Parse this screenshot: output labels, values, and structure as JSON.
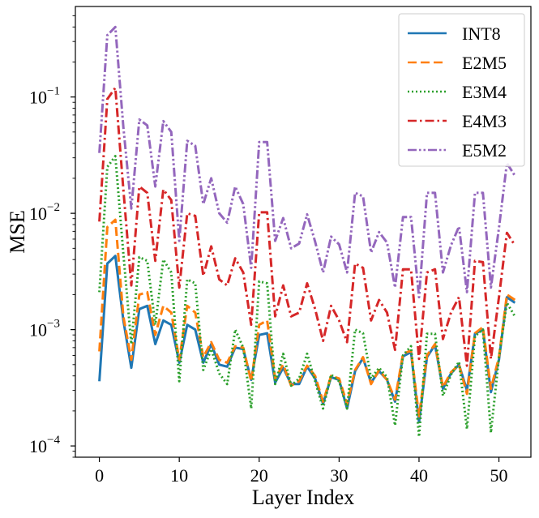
{
  "chart_data": {
    "type": "line",
    "title": "",
    "xlabel": "Layer Index",
    "ylabel": "MSE",
    "yscale": "log",
    "xlim": [
      -3,
      54
    ],
    "ylim": [
      8e-05,
      0.6
    ],
    "xticks": [
      0,
      10,
      20,
      30,
      40,
      50
    ],
    "yticks": [
      {
        "value": 0.0001,
        "base": "10",
        "exp": "−4"
      },
      {
        "value": 0.001,
        "base": "10",
        "exp": "−3"
      },
      {
        "value": 0.01,
        "base": "10",
        "exp": "−2"
      },
      {
        "value": 0.1,
        "base": "10",
        "exp": "−1"
      }
    ],
    "legend_position": "top-right",
    "x": [
      0,
      1,
      2,
      3,
      4,
      5,
      6,
      7,
      8,
      9,
      10,
      11,
      12,
      13,
      14,
      15,
      16,
      17,
      18,
      19,
      20,
      21,
      22,
      23,
      24,
      25,
      26,
      27,
      28,
      29,
      30,
      31,
      32,
      33,
      34,
      35,
      36,
      37,
      38,
      39,
      40,
      41,
      42,
      43,
      44,
      45,
      46,
      47,
      48,
      49,
      50,
      51,
      52
    ],
    "series": [
      {
        "name": "INT8",
        "color": "#1f77b4",
        "dash": "solid",
        "values": [
          0.00036,
          0.0037,
          0.0043,
          0.0012,
          0.00047,
          0.0015,
          0.0016,
          0.00075,
          0.0012,
          0.0011,
          0.00052,
          0.0011,
          0.001,
          0.00052,
          0.00075,
          0.0005,
          0.00048,
          0.0007,
          0.00068,
          0.00037,
          0.0009,
          0.00093,
          0.00035,
          0.00047,
          0.00034,
          0.00034,
          0.00048,
          0.00038,
          0.00023,
          0.00039,
          0.00037,
          0.00021,
          0.00044,
          0.00057,
          0.00035,
          0.00044,
          0.00037,
          0.00024,
          0.00059,
          0.00064,
          0.00016,
          0.00058,
          0.00074,
          0.00031,
          0.00042,
          0.0005,
          0.0003,
          0.00092,
          0.001,
          0.00029,
          0.00055,
          0.0019,
          0.0017
        ]
      },
      {
        "name": "E2M5",
        "color": "#ff7f0e",
        "dash": "dash",
        "values": [
          0.00065,
          0.0076,
          0.0088,
          0.0013,
          0.00055,
          0.002,
          0.0021,
          0.0009,
          0.0016,
          0.0014,
          0.00055,
          0.0016,
          0.0014,
          0.00058,
          0.00078,
          0.00055,
          0.00052,
          0.00072,
          0.0007,
          0.00036,
          0.0011,
          0.0012,
          0.00038,
          0.0005,
          0.00033,
          0.00036,
          0.00049,
          0.0004,
          0.00024,
          0.0004,
          0.00038,
          0.00023,
          0.00045,
          0.00058,
          0.00034,
          0.00045,
          0.00037,
          0.00025,
          0.00062,
          0.00066,
          0.00018,
          0.0006,
          0.00075,
          0.00032,
          0.00043,
          0.0005,
          0.00028,
          0.00093,
          0.00105,
          0.00031,
          0.00058,
          0.002,
          0.0018
        ]
      },
      {
        "name": "E3M4",
        "color": "#2ca02c",
        "dash": "dot",
        "values": [
          0.0021,
          0.025,
          0.031,
          0.0045,
          0.00075,
          0.0042,
          0.0039,
          0.0011,
          0.004,
          0.0031,
          0.00036,
          0.0027,
          0.0025,
          0.00045,
          0.00068,
          0.00042,
          0.00034,
          0.001,
          0.0007,
          0.00021,
          0.0026,
          0.0025,
          0.00034,
          0.00062,
          0.00033,
          0.00038,
          0.00062,
          0.00036,
          0.00021,
          0.00041,
          0.00036,
          0.00021,
          0.001,
          0.00093,
          0.00038,
          0.00047,
          0.00039,
          0.00015,
          0.0006,
          0.00072,
          0.00012,
          0.00092,
          0.00092,
          0.00027,
          0.00041,
          0.00053,
          0.00014,
          0.00088,
          0.001,
          0.00013,
          0.00058,
          0.0017,
          0.0013
        ]
      },
      {
        "name": "E4M3",
        "color": "#d62728",
        "dash": "dashdot",
        "values": [
          0.0085,
          0.096,
          0.12,
          0.016,
          0.0024,
          0.017,
          0.015,
          0.0039,
          0.016,
          0.013,
          0.0023,
          0.01,
          0.0095,
          0.0029,
          0.0052,
          0.0027,
          0.0024,
          0.0041,
          0.0031,
          0.0011,
          0.0102,
          0.0102,
          0.0013,
          0.0024,
          0.0013,
          0.0014,
          0.0025,
          0.0015,
          0.0008,
          0.0016,
          0.0012,
          0.00078,
          0.0037,
          0.0034,
          0.0012,
          0.0018,
          0.0014,
          0.00067,
          0.0033,
          0.0033,
          0.00056,
          0.0031,
          0.0033,
          0.00083,
          0.0014,
          0.0019,
          0.00049,
          0.0039,
          0.0038,
          0.00056,
          0.0019,
          0.0068,
          0.0053
        ]
      },
      {
        "name": "E5M2",
        "color": "#9467bd",
        "dash": "dashdotdot",
        "values": [
          0.033,
          0.34,
          0.4,
          0.055,
          0.011,
          0.064,
          0.057,
          0.017,
          0.062,
          0.05,
          0.0058,
          0.042,
          0.038,
          0.012,
          0.02,
          0.01,
          0.0083,
          0.017,
          0.012,
          0.0034,
          0.041,
          0.041,
          0.0058,
          0.0091,
          0.005,
          0.0055,
          0.0098,
          0.0057,
          0.0031,
          0.0063,
          0.0054,
          0.0031,
          0.015,
          0.014,
          0.0046,
          0.0069,
          0.0056,
          0.0023,
          0.0093,
          0.0093,
          0.0019,
          0.015,
          0.015,
          0.0031,
          0.0053,
          0.0077,
          0.0021,
          0.015,
          0.015,
          0.0023,
          0.0075,
          0.027,
          0.021
        ]
      }
    ]
  }
}
